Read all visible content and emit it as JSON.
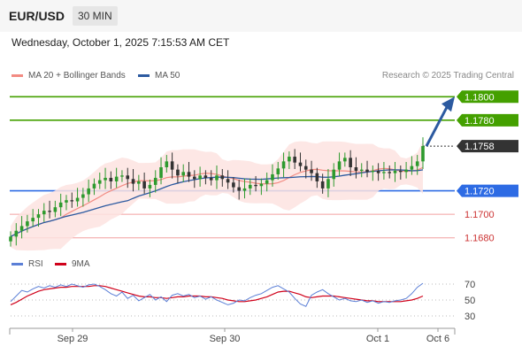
{
  "header": {
    "pair": "EUR/USD",
    "timeframe": "30 MIN"
  },
  "datetime": "Wednesday, October 1, 2025 7:15:53 AM CET",
  "legend": {
    "ma20": {
      "label": "MA 20 + Bollinger Bands",
      "color": "#f28b82"
    },
    "ma50": {
      "label": "MA 50",
      "color": "#2c5aa0"
    }
  },
  "credit": "Research © 2025 Trading Central",
  "levels": [
    {
      "value": "1.1800",
      "kind": "resistance",
      "color": "#44a000"
    },
    {
      "value": "1.1780",
      "kind": "resistance",
      "color": "#44a000"
    },
    {
      "value": "1.1758",
      "kind": "last",
      "color": "#333333"
    },
    {
      "value": "1.1720",
      "kind": "pivot",
      "color": "#2d6be4"
    },
    {
      "value": "1.1700",
      "kind": "support",
      "color": "#cc3333"
    },
    {
      "value": "1.1680",
      "kind": "support",
      "color": "#cc3333"
    }
  ],
  "rsi_legend": {
    "rsi": {
      "label": "RSI",
      "color": "#5b7fd6"
    },
    "ma": {
      "label": "9MA",
      "color": "#d0021b"
    }
  },
  "rsi_ticks": [
    "70",
    "50",
    "30"
  ],
  "x_ticks": [
    "Sep 29",
    "Sep 30",
    "Oct 1",
    "Oct 6"
  ],
  "chart_data": {
    "type": "candlestick",
    "price_series": [
      1.1681,
      1.1686,
      1.169,
      1.1694,
      1.1697,
      1.17,
      1.1703,
      1.1702,
      1.1706,
      1.171,
      1.1712,
      1.1711,
      1.1714,
      1.1717,
      1.1722,
      1.1726,
      1.1729,
      1.1731,
      1.1728,
      1.1732,
      1.1733,
      1.173,
      1.1726,
      1.1728,
      1.1722,
      1.1725,
      1.1731,
      1.174,
      1.1745,
      1.1738,
      1.1733,
      1.1736,
      1.1732,
      1.173,
      1.1733,
      1.1731,
      1.1729,
      1.1733,
      1.173,
      1.1727,
      1.1723,
      1.172,
      1.1722,
      1.1725,
      1.1724,
      1.1726,
      1.1729,
      1.1734,
      1.1739,
      1.1745,
      1.1749,
      1.1744,
      1.1741,
      1.1738,
      1.1735,
      1.1728,
      1.1722,
      1.173,
      1.1738,
      1.1745,
      1.1748,
      1.174,
      1.1737,
      1.1738,
      1.1736,
      1.1737,
      1.1735,
      1.1736,
      1.1735,
      1.1737,
      1.1736,
      1.1738,
      1.1741,
      1.1745,
      1.1758
    ],
    "ylim": [
      1.167,
      1.181
    ],
    "rsi_series": [
      48,
      55,
      62,
      60,
      64,
      67,
      65,
      68,
      66,
      69,
      67,
      70,
      68,
      66,
      69,
      70,
      67,
      63,
      58,
      55,
      60,
      52,
      56,
      49,
      53,
      57,
      50,
      54,
      48,
      56,
      58,
      55,
      57,
      53,
      55,
      51,
      54,
      50,
      47,
      44,
      46,
      50,
      49,
      53,
      56,
      58,
      62,
      66,
      68,
      64,
      60,
      52,
      45,
      42,
      56,
      60,
      63,
      58,
      54,
      50,
      52,
      49,
      48,
      50,
      47,
      49,
      46,
      48,
      47,
      49,
      50,
      52,
      58,
      66,
      71
    ],
    "rsi_ma_series": [
      44,
      47,
      51,
      55,
      58,
      61,
      63,
      64,
      65,
      66,
      66,
      67,
      67,
      67,
      67,
      68,
      68,
      67,
      65,
      63,
      61,
      59,
      57,
      55,
      54,
      54,
      53,
      53,
      52,
      53,
      54,
      54,
      55,
      55,
      55,
      54,
      54,
      53,
      52,
      50,
      49,
      48,
      48,
      49,
      50,
      52,
      54,
      57,
      60,
      61,
      61,
      59,
      57,
      54,
      53,
      54,
      55,
      55,
      55,
      54,
      53,
      52,
      51,
      50,
      49,
      49,
      48,
      48,
      48,
      48,
      48,
      49,
      50,
      52,
      55
    ],
    "rsi_ylim": [
      20,
      80
    ]
  }
}
